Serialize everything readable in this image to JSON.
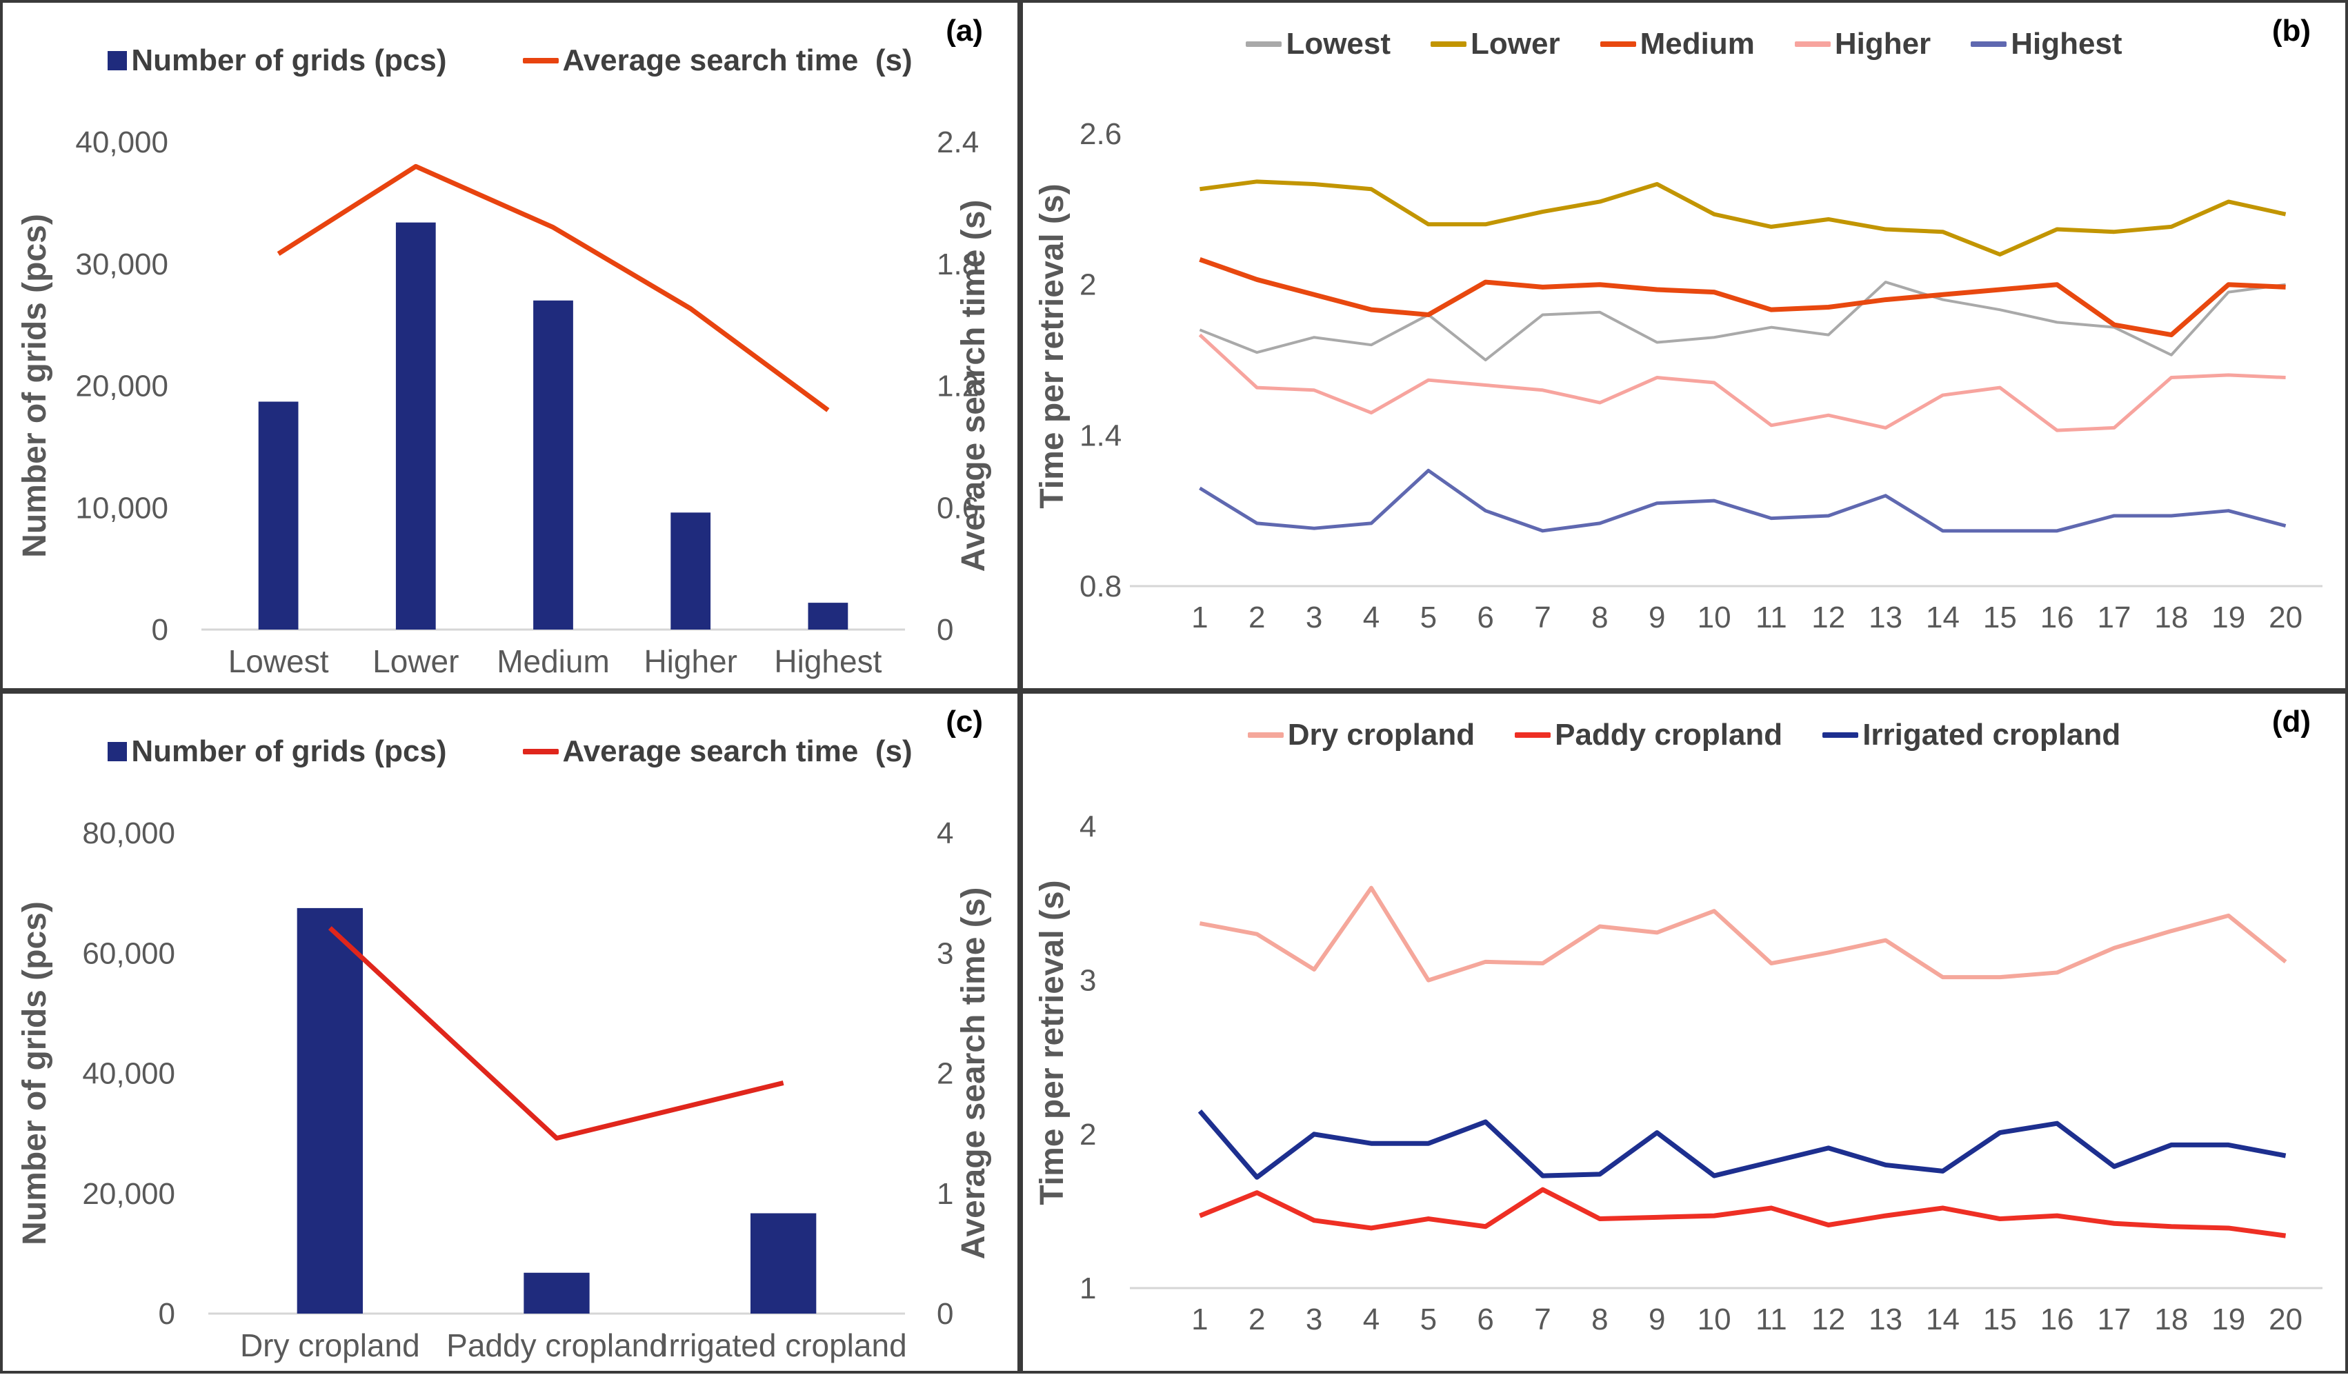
{
  "figure": {
    "background": "#ffffff",
    "border_color": "#3a3a3a",
    "baseline_color": "#d6d6d6",
    "tick_color": "#595959",
    "legend_text_color": "#3f3f3f"
  },
  "chart_data": [
    {
      "panel_label": "(a)",
      "type": "combo",
      "categories": [
        "Lowest",
        "Lower",
        "Medium",
        "Higher",
        "Highest"
      ],
      "bar_series": {
        "name": "Number of grids (pcs)",
        "color": "#1f2b7d",
        "values": [
          18700,
          33400,
          27000,
          9600,
          2200
        ]
      },
      "line_series": {
        "name": "Average search time  (s)",
        "color": "#e8430f",
        "values": [
          1.85,
          2.28,
          1.98,
          1.58,
          1.08
        ]
      },
      "left_axis": {
        "label": "Number of grids (pcs)",
        "min": 0,
        "max": 40000,
        "step": 10000
      },
      "right_axis": {
        "label": "Average search time  (s)",
        "min": 0,
        "max": 2.4,
        "step": 0.6
      },
      "legend_position": "top",
      "grid": false
    },
    {
      "panel_label": "(b)",
      "type": "line",
      "x": [
        1,
        2,
        3,
        4,
        5,
        6,
        7,
        8,
        9,
        10,
        11,
        12,
        13,
        14,
        15,
        16,
        17,
        18,
        19,
        20
      ],
      "ylabel": "Time per retrieval (s)",
      "y_ticks": [
        0.8,
        1.4,
        2,
        2.6
      ],
      "ylim": [
        0.8,
        2.71
      ],
      "series": [
        {
          "name": "Lowest",
          "color": "#a9a9a9",
          "width": 4,
          "values": [
            1.82,
            1.73,
            1.79,
            1.76,
            1.88,
            1.7,
            1.88,
            1.89,
            1.77,
            1.79,
            1.83,
            1.8,
            2.01,
            1.94,
            1.9,
            1.85,
            1.83,
            1.72,
            1.97,
            2.0
          ]
        },
        {
          "name": "Lower",
          "color": "#c29500",
          "width": 6,
          "values": [
            2.38,
            2.41,
            2.4,
            2.38,
            2.24,
            2.24,
            2.29,
            2.33,
            2.4,
            2.28,
            2.23,
            2.26,
            2.22,
            2.21,
            2.12,
            2.22,
            2.21,
            2.23,
            2.33,
            2.28
          ]
        },
        {
          "name": "Medium",
          "color": "#e8480f",
          "width": 7,
          "values": [
            2.1,
            2.02,
            1.96,
            1.9,
            1.88,
            2.01,
            1.99,
            2.0,
            1.98,
            1.97,
            1.9,
            1.91,
            1.94,
            1.96,
            1.98,
            2.0,
            1.84,
            1.8,
            2.0,
            1.99
          ]
        },
        {
          "name": "Higher",
          "color": "#f7a49e",
          "width": 5,
          "values": [
            1.8,
            1.59,
            1.58,
            1.49,
            1.62,
            1.6,
            1.58,
            1.53,
            1.63,
            1.61,
            1.44,
            1.48,
            1.43,
            1.56,
            1.59,
            1.42,
            1.43,
            1.63,
            1.64,
            1.63
          ]
        },
        {
          "name": "Highest",
          "color": "#5f68b0",
          "width": 5,
          "values": [
            1.19,
            1.05,
            1.03,
            1.05,
            1.26,
            1.1,
            1.02,
            1.05,
            1.13,
            1.14,
            1.07,
            1.08,
            1.16,
            1.02,
            1.02,
            1.02,
            1.08,
            1.08,
            1.1,
            1.04
          ]
        }
      ],
      "legend_position": "top",
      "grid": false
    },
    {
      "panel_label": "(c)",
      "type": "combo",
      "categories": [
        "Dry cropland",
        "Paddy cropland",
        "Irrigated cropland"
      ],
      "bar_series": {
        "name": "Number of grids (pcs)",
        "color": "#1f2b7d",
        "values": [
          67500,
          6800,
          16700
        ]
      },
      "line_series": {
        "name": "Average search time  (s)",
        "color": "#e0261c",
        "values": [
          3.21,
          1.46,
          1.92
        ]
      },
      "left_axis": {
        "label": "Number of grids (pcs)",
        "min": 0,
        "max": 80000,
        "step": 20000
      },
      "right_axis": {
        "label": "Average search time  (s)",
        "min": 0,
        "max": 4,
        "step": 1
      },
      "legend_position": "top",
      "grid": false
    },
    {
      "panel_label": "(d)",
      "type": "line",
      "x": [
        1,
        2,
        3,
        4,
        5,
        6,
        7,
        8,
        9,
        10,
        11,
        12,
        13,
        14,
        15,
        16,
        17,
        18,
        19,
        20
      ],
      "ylabel": "Time per retrieval (s)",
      "y_ticks": [
        1,
        2,
        3,
        4
      ],
      "ylim": [
        1,
        4.19
      ],
      "series": [
        {
          "name": "Dry cropland",
          "color": "#f5a79b",
          "width": 6,
          "values": [
            3.37,
            3.3,
            3.07,
            3.6,
            3.0,
            3.12,
            3.11,
            3.35,
            3.31,
            3.45,
            3.11,
            3.18,
            3.26,
            3.02,
            3.02,
            3.05,
            3.21,
            3.32,
            3.42,
            3.12
          ]
        },
        {
          "name": "Paddy cropland",
          "color": "#ee2f24",
          "width": 7,
          "values": [
            1.47,
            1.62,
            1.44,
            1.39,
            1.45,
            1.4,
            1.64,
            1.45,
            1.46,
            1.47,
            1.52,
            1.41,
            1.47,
            1.52,
            1.45,
            1.47,
            1.42,
            1.4,
            1.39,
            1.34
          ]
        },
        {
          "name": "Irrigated cropland",
          "color": "#1d2f8f",
          "width": 7,
          "values": [
            2.15,
            1.72,
            2.0,
            1.94,
            1.94,
            2.08,
            1.73,
            1.74,
            2.01,
            1.73,
            1.82,
            1.91,
            1.8,
            1.76,
            2.01,
            2.07,
            1.79,
            1.93,
            1.93,
            1.86
          ]
        }
      ],
      "legend_position": "top",
      "grid": false
    }
  ]
}
